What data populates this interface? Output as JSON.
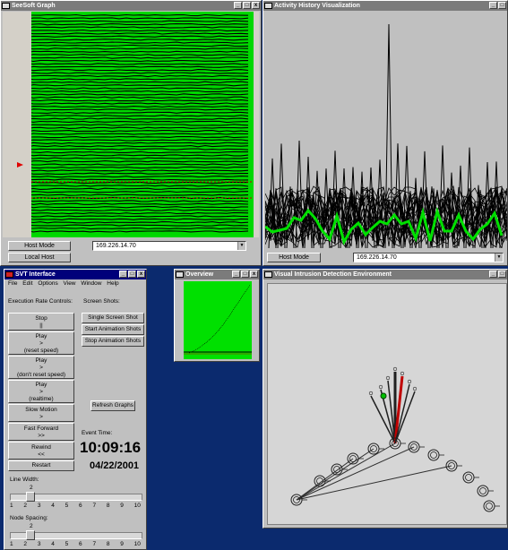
{
  "seesoft": {
    "title": "SeeSoft Graph",
    "host_mode_label": "Host Mode",
    "local_host_label": "Local Host",
    "ip_value": "169.226.14.70"
  },
  "activity": {
    "title": "Activity History Visualization",
    "host_mode_label": "Host Mode",
    "ip_value": "169.226.14.70"
  },
  "svt": {
    "title": "SVT Interface",
    "menu": [
      "File",
      "Edit",
      "Options",
      "View",
      "Window",
      "Help"
    ],
    "exec_label": "Execution Rate Controls:",
    "screenshots_label": "Screen Shots:",
    "controls": [
      {
        "label": "Stop",
        "sub": "||"
      },
      {
        "label": "Play",
        "sub": ">",
        "extra": "(reset speed)"
      },
      {
        "label": "Play",
        "sub": ">",
        "extra": "(don't reset speed)"
      },
      {
        "label": "Play",
        "sub": ">",
        "extra": "(realtime)"
      },
      {
        "label": "Slow Motion",
        "sub": ">"
      },
      {
        "label": "Fast Forward",
        "sub": ">>"
      },
      {
        "label": "Rewind",
        "sub": "<<"
      },
      {
        "label": "Restart"
      }
    ],
    "shots": [
      "Single Screen Shot",
      "Start Animation Shots",
      "Stop Animation Shots"
    ],
    "refresh_label": "Refresh Graphs",
    "event_time_label": "Event Time:",
    "event_time": "10:09:16",
    "event_date": "04/22/2001",
    "line_width_label": "Line Width:",
    "line_width_value": "2",
    "node_spacing_label": "Node Spacing:",
    "node_spacing_value": "2",
    "ticks": [
      "1",
      "2",
      "3",
      "4",
      "5",
      "6",
      "7",
      "8",
      "9",
      "10"
    ]
  },
  "overview": {
    "title": "Overview"
  },
  "vide": {
    "title": "Visual Intrusion Detection Environment"
  },
  "colors": {
    "active_title": "#00007a",
    "inactive_title": "#7b7b7b",
    "green": "#00e000",
    "desktop": "#0b2a6e"
  }
}
